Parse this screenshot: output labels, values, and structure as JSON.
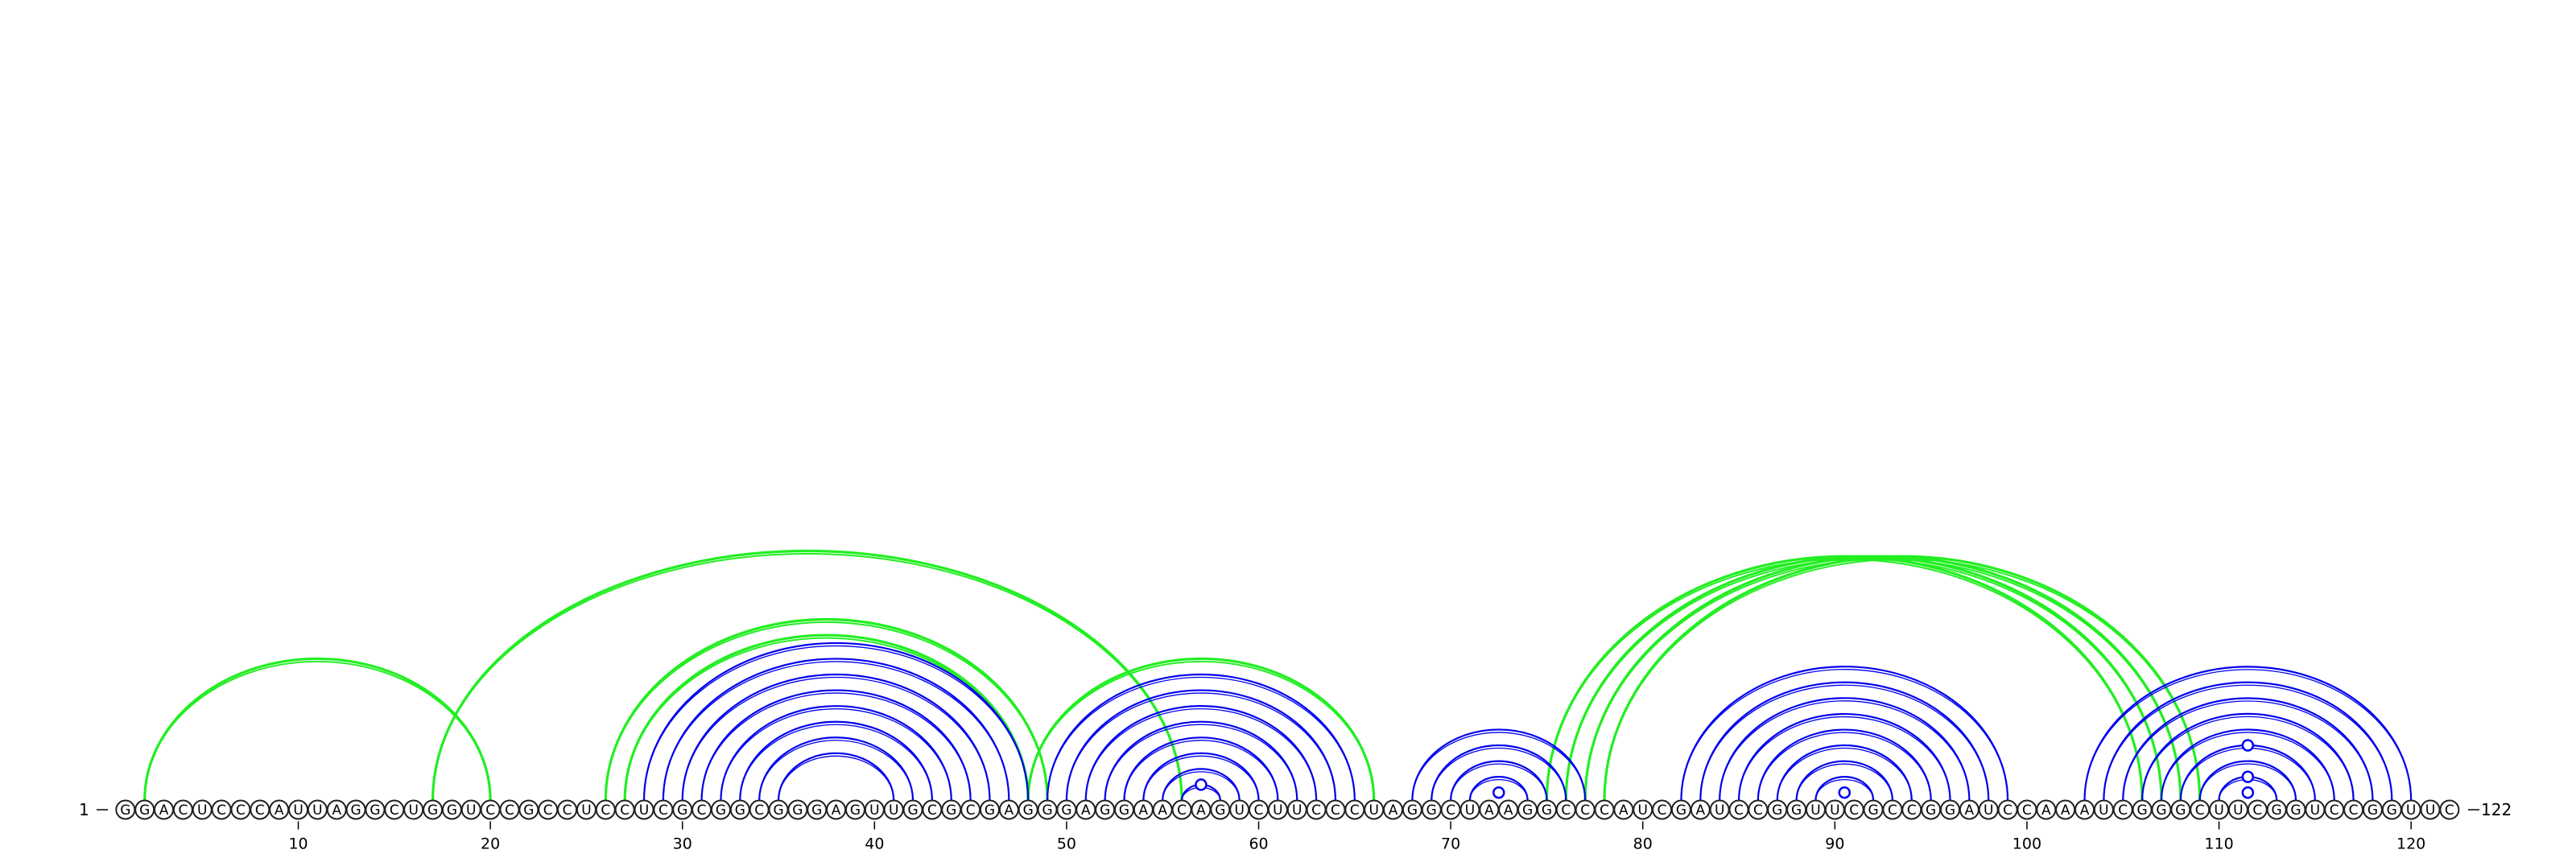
{
  "sequence": "GGACUCCCAUUAGGCUGGUCCGCCUCCUCGCGGCGGGAGUUGCGCGAGGGAGGAACAGUCUUCCCUAGGCUAAGGCCCAUCGAUCCGGUUCGCCGGAUCCAAAUCGGGCUUCGGUCCGGUUC",
  "start_label": "1",
  "end_label": "122",
  "length": 122,
  "ticks": [
    "10",
    "20",
    "30",
    "40",
    "50",
    "60",
    "70",
    "80",
    "90",
    "100",
    "110",
    "120"
  ],
  "colors": {
    "blue": "#0000ee",
    "green": "#22ee22",
    "gu_mark": "#0000ee"
  },
  "pairs_blue": [
    [
      28,
      48
    ],
    [
      29,
      47
    ],
    [
      30,
      46
    ],
    [
      31,
      45
    ],
    [
      32,
      44
    ],
    [
      33,
      43
    ],
    [
      34,
      42
    ],
    [
      35,
      41
    ],
    [
      49,
      65
    ],
    [
      50,
      64
    ],
    [
      51,
      63
    ],
    [
      52,
      62
    ],
    [
      53,
      61
    ],
    [
      54,
      60
    ],
    [
      55,
      59
    ],
    [
      56,
      58
    ],
    [
      68,
      77
    ],
    [
      69,
      76
    ],
    [
      70,
      75
    ],
    [
      71,
      74
    ],
    [
      82,
      99
    ],
    [
      83,
      98
    ],
    [
      84,
      97
    ],
    [
      85,
      96
    ],
    [
      86,
      95
    ],
    [
      87,
      94
    ],
    [
      88,
      93
    ],
    [
      89,
      92
    ],
    [
      103,
      120
    ],
    [
      104,
      119
    ],
    [
      105,
      118
    ],
    [
      106,
      117
    ],
    [
      107,
      116
    ],
    [
      108,
      115
    ],
    [
      109,
      114
    ],
    [
      110,
      113
    ]
  ],
  "pairs_green": [
    [
      2,
      20
    ],
    [
      17,
      56
    ],
    [
      26,
      49
    ],
    [
      27,
      48
    ],
    [
      48,
      66
    ],
    [
      75,
      106
    ],
    [
      76,
      107
    ],
    [
      77,
      108
    ],
    [
      78,
      109
    ]
  ],
  "gu_pairs": [
    [
      56,
      58
    ],
    [
      72,
      73
    ],
    [
      90,
      91
    ],
    [
      111,
      112
    ],
    [
      110,
      113
    ],
    [
      108,
      115
    ]
  ]
}
